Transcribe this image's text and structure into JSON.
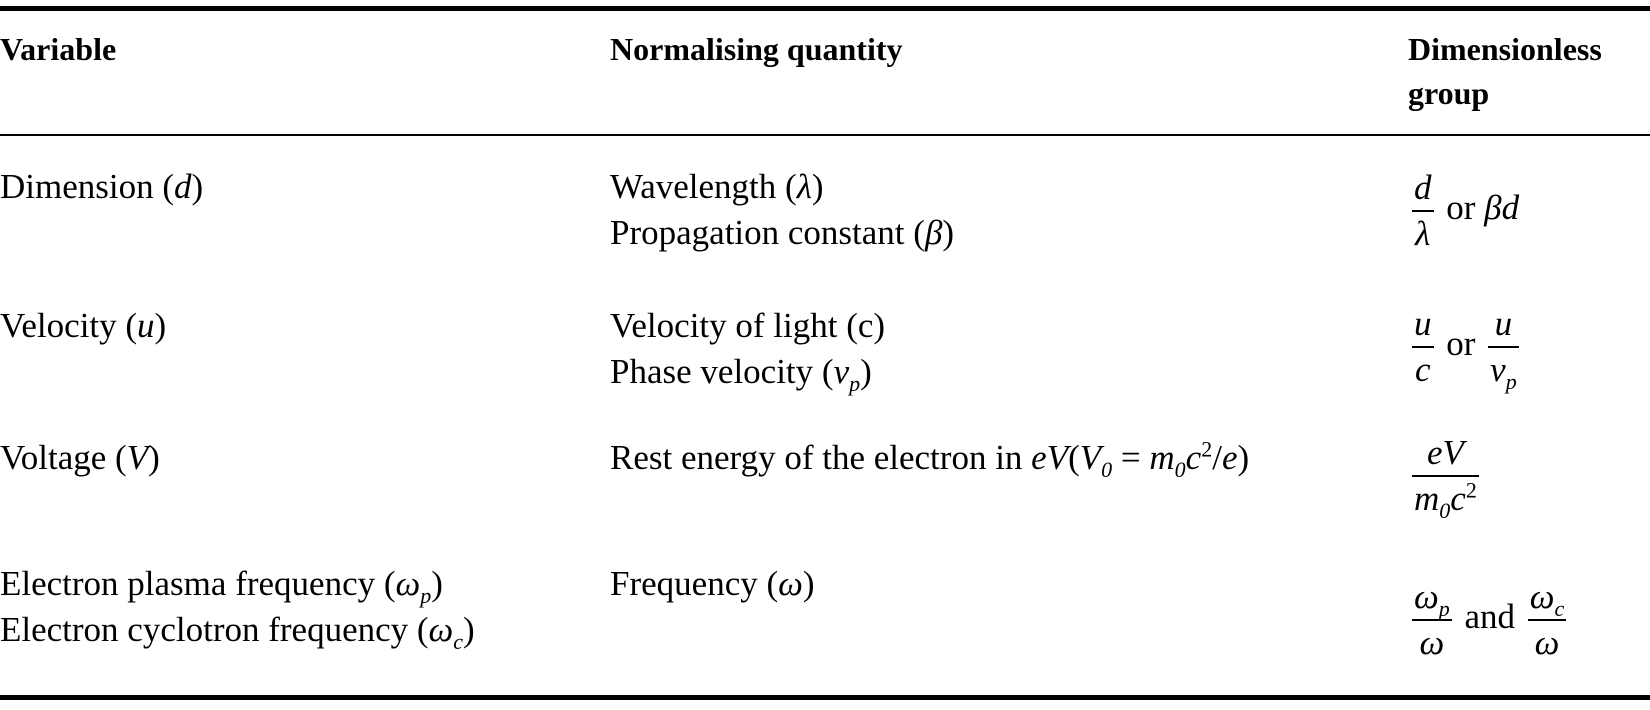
{
  "header": [
    "Variable",
    "Normalising quantity",
    "Dimensionless group"
  ],
  "rows": [
    {
      "variable": [
        [
          "Dimension (",
          {
            "i": "d"
          },
          ")"
        ]
      ],
      "quantity": [
        [
          "Wavelength (",
          {
            "i": "λ"
          },
          ")"
        ],
        [
          "Propagation constant (",
          {
            "i": "β"
          },
          ")"
        ]
      ],
      "group": [
        [
          {
            "frac": {
              "num": [
                {
                  "i": "d"
                }
              ],
              "den": [
                {
                  "i": "λ"
                }
              ]
            }
          },
          " or ",
          {
            "i": "βd"
          }
        ]
      ]
    },
    {
      "variable": [
        [
          "Velocity (",
          {
            "i": "u"
          },
          ")"
        ]
      ],
      "quantity": [
        [
          "Velocity of light (c)"
        ],
        [
          "Phase velocity (",
          {
            "i": "v"
          },
          {
            "sub": "p"
          },
          ")"
        ]
      ],
      "group": [
        [
          {
            "frac": {
              "num": [
                {
                  "i": "u"
                }
              ],
              "den": [
                {
                  "i": "c"
                }
              ]
            }
          },
          " or ",
          {
            "frac": {
              "num": [
                {
                  "i": "u"
                }
              ],
              "den": [
                {
                  "i": "v"
                },
                {
                  "sub": "p"
                }
              ]
            }
          }
        ]
      ]
    },
    {
      "variable": [
        [
          "Voltage (",
          {
            "i": "V"
          },
          ")"
        ]
      ],
      "quantity": [
        [
          "Rest energy of the electron in ",
          {
            "i": "eV"
          },
          "(",
          {
            "i": "V"
          },
          {
            "sub": "0"
          },
          " = ",
          {
            "i": "m"
          },
          {
            "sub": "0"
          },
          {
            "i": "c"
          },
          {
            "sup": "2"
          },
          "/",
          {
            "i": "e"
          },
          ")"
        ]
      ],
      "group": [
        [
          {
            "frac": {
              "num": [
                {
                  "i": "eV"
                }
              ],
              "den": [
                {
                  "i": "m"
                },
                {
                  "sub": "0"
                },
                {
                  "i": "c"
                },
                {
                  "sup": "2"
                }
              ]
            }
          }
        ]
      ]
    },
    {
      "variable": [
        [
          "Electron plasma frequency (",
          {
            "i": "ω"
          },
          {
            "sub": "p"
          },
          ")"
        ],
        [
          "Electron cyclotron frequency (",
          {
            "i": "ω"
          },
          {
            "sub": "c"
          },
          ")"
        ]
      ],
      "quantity": [
        [
          "Frequency (",
          {
            "i": "ω"
          },
          ")"
        ]
      ],
      "group": [
        [
          {
            "frac": {
              "num": [
                {
                  "i": "ω"
                },
                {
                  "sub": "p"
                }
              ],
              "den": [
                {
                  "i": "ω"
                }
              ]
            }
          },
          " and ",
          {
            "frac": {
              "num": [
                {
                  "i": "ω"
                },
                {
                  "sub": "c"
                }
              ],
              "den": [
                {
                  "i": "ω"
                }
              ]
            }
          }
        ]
      ]
    }
  ]
}
